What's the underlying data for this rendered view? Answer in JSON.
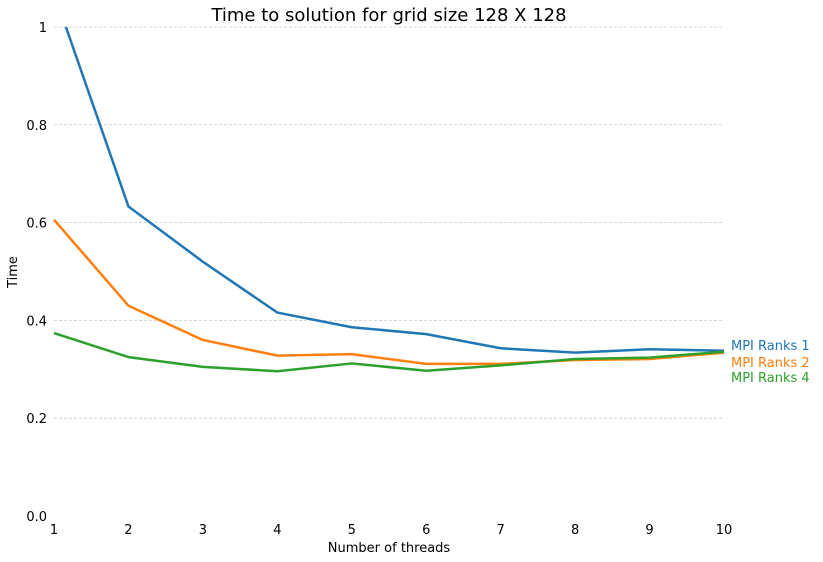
{
  "chart_data": {
    "type": "line",
    "title": "Time to solution for grid size 128 X 128",
    "xlabel": "Number of threads",
    "ylabel": "Time",
    "x": [
      1,
      2,
      3,
      4,
      5,
      6,
      7,
      8,
      9,
      10
    ],
    "xlim": [
      1,
      10
    ],
    "ylim": [
      0,
      1
    ],
    "xticks": [
      "1",
      "2",
      "3",
      "4",
      "5",
      "6",
      "7",
      "8",
      "9",
      "10"
    ],
    "yticks": [
      "0.0",
      "0.2",
      "0.4",
      "0.6",
      "0.8",
      "1"
    ],
    "yticks_values": [
      0,
      0.2,
      0.4,
      0.6,
      0.8,
      1
    ],
    "grid": true,
    "legend": "end-of-line labels",
    "series": [
      {
        "name": "MPI Ranks 1",
        "color": "#1f77b4",
        "values": [
          1.07,
          0.633,
          0.52,
          0.416,
          0.386,
          0.372,
          0.343,
          0.334,
          0.341,
          0.338
        ]
      },
      {
        "name": "MPI Ranks 2",
        "color": "#ff7f0e",
        "values": [
          0.606,
          0.43,
          0.36,
          0.328,
          0.331,
          0.311,
          0.311,
          0.319,
          0.321,
          0.334
        ]
      },
      {
        "name": "MPI Ranks 4",
        "color": "#2ca02c",
        "values": [
          0.374,
          0.325,
          0.305,
          0.296,
          0.312,
          0.297,
          0.308,
          0.321,
          0.324,
          0.336
        ]
      }
    ]
  }
}
